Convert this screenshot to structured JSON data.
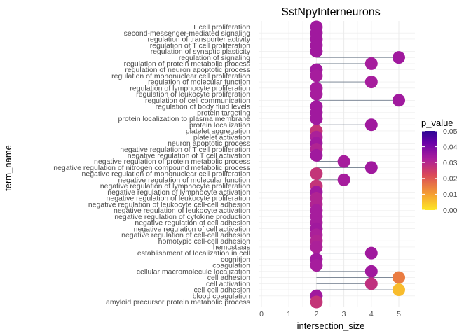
{
  "chart_data": {
    "type": "scatter",
    "subtype": "lollipop",
    "title": "SstNpyInterneurons",
    "xlabel": "intersection_size",
    "ylabel": "term_name",
    "xlim": [
      0,
      5
    ],
    "x_ticks": [
      "0",
      "1",
      "2",
      "3",
      "4",
      "5"
    ],
    "grid": true,
    "stem_baseline": 2,
    "legend": {
      "title": "p_value",
      "position": "right",
      "ticks": [
        "0.05",
        "0.04",
        "0.03",
        "0.02",
        "0.01",
        "0.00"
      ],
      "range": [
        0,
        0.05
      ],
      "colors": [
        "#FDE725",
        "#F59F32",
        "#D9475A",
        "#A91E9C",
        "#6A00A8",
        "#2A0593"
      ]
    },
    "terms": [
      {
        "name": "T cell proliferation",
        "x": 2,
        "p": 0.034
      },
      {
        "name": "second-messenger-mediated signaling",
        "x": 2,
        "p": 0.034
      },
      {
        "name": "regulation of transporter activity",
        "x": 2,
        "p": 0.034
      },
      {
        "name": "regulation of T cell proliferation",
        "x": 2,
        "p": 0.034
      },
      {
        "name": "regulation of synaptic plasticity",
        "x": 2,
        "p": 0.034
      },
      {
        "name": "regulation of signaling",
        "x": 5,
        "p": 0.034
      },
      {
        "name": "regulation of protein metabolic process",
        "x": 4,
        "p": 0.033
      },
      {
        "name": "regulation of neuron apoptotic process",
        "x": 2,
        "p": 0.034
      },
      {
        "name": "regulation of mononuclear cell proliferation",
        "x": 2,
        "p": 0.033
      },
      {
        "name": "regulation of molecular function",
        "x": 4,
        "p": 0.033
      },
      {
        "name": "regulation of lymphocyte proliferation",
        "x": 2,
        "p": 0.033
      },
      {
        "name": "regulation of leukocyte proliferation",
        "x": 2,
        "p": 0.033
      },
      {
        "name": "regulation of cell communication",
        "x": 5,
        "p": 0.034
      },
      {
        "name": "regulation of body fluid levels",
        "x": 2,
        "p": 0.034
      },
      {
        "name": "protein targeting",
        "x": 2,
        "p": 0.034
      },
      {
        "name": "protein localization to plasma membrane",
        "x": 2,
        "p": 0.034
      },
      {
        "name": "protein localization",
        "x": 4,
        "p": 0.034
      },
      {
        "name": "platelet aggregation",
        "x": 2,
        "p": 0.027
      },
      {
        "name": "platelet activation",
        "x": 2,
        "p": 0.032
      },
      {
        "name": "neuron apoptotic process",
        "x": 2,
        "p": 0.034
      },
      {
        "name": "negative regulation of T cell proliferation",
        "x": 2,
        "p": 0.031
      },
      {
        "name": "negative regulation of T cell activation",
        "x": 2,
        "p": 0.034
      },
      {
        "name": "negative regulation of protein metabolic process",
        "x": 3,
        "p": 0.033
      },
      {
        "name": "negative regulation of nitrogen compound metabolic process",
        "x": 4,
        "p": 0.034
      },
      {
        "name": "negative regulation of mononuclear cell proliferation",
        "x": 2,
        "p": 0.027
      },
      {
        "name": "negative regulation of molecular function",
        "x": 3,
        "p": 0.033
      },
      {
        "name": "negative regulation of lymphocyte proliferation",
        "x": 2,
        "p": 0.027
      },
      {
        "name": "negative regulation of lymphocyte activation",
        "x": 2,
        "p": 0.034
      },
      {
        "name": "negative regulation of leukocyte proliferation",
        "x": 2,
        "p": 0.031
      },
      {
        "name": "negative regulation of leukocyte cell-cell adhesion",
        "x": 2,
        "p": 0.031
      },
      {
        "name": "negative regulation of leukocyte activation",
        "x": 2,
        "p": 0.033
      },
      {
        "name": "negative regulation of cytokine production",
        "x": 2,
        "p": 0.033
      },
      {
        "name": "negative regulation of cell adhesion",
        "x": 2,
        "p": 0.033
      },
      {
        "name": "negative regulation of cell activation",
        "x": 2,
        "p": 0.034
      },
      {
        "name": "negative regulation of cell-cell adhesion",
        "x": 2,
        "p": 0.032
      },
      {
        "name": "homotypic cell-cell adhesion",
        "x": 2,
        "p": 0.031
      },
      {
        "name": "hemostasis",
        "x": 2,
        "p": 0.032
      },
      {
        "name": "establishment of localization in cell",
        "x": 4,
        "p": 0.034
      },
      {
        "name": "cognition",
        "x": 2,
        "p": 0.034
      },
      {
        "name": "coagulation",
        "x": 2,
        "p": 0.033
      },
      {
        "name": "cellular macromolecule localization",
        "x": 4,
        "p": 0.034
      },
      {
        "name": "cell adhesion",
        "x": 5,
        "p": 0.015
      },
      {
        "name": "cell activation",
        "x": 4,
        "p": 0.028
      },
      {
        "name": "cell-cell adhesion",
        "x": 5,
        "p": 0.006
      },
      {
        "name": "blood coagulation",
        "x": 2,
        "p": 0.034
      },
      {
        "name": "amyloid precursor protein metabolic process",
        "x": 2,
        "p": 0.027
      }
    ]
  }
}
